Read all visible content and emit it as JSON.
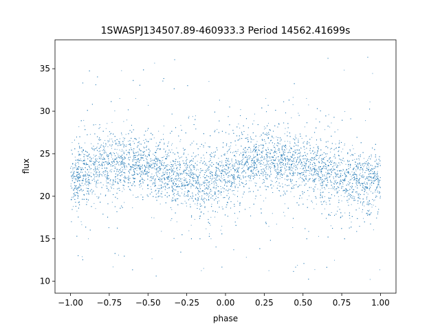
{
  "chart_data": {
    "type": "scatter",
    "title": "1SWASPJ134507.89-460933.3 Period 14562.41699s",
    "xlabel": "phase",
    "ylabel": "flux",
    "xlim": [
      -1.1,
      1.1
    ],
    "ylim": [
      8.6,
      38.4
    ],
    "xticks": [
      -1.0,
      -0.75,
      -0.5,
      -0.25,
      0.0,
      0.25,
      0.5,
      0.75,
      1.0
    ],
    "xtick_labels": [
      "−1.00",
      "−0.75",
      "−0.50",
      "−0.25",
      "0.00",
      "0.25",
      "0.50",
      "0.75",
      "1.00"
    ],
    "yticks": [
      10,
      15,
      20,
      25,
      30,
      35
    ],
    "ytick_labels": [
      "10",
      "15",
      "20",
      "25",
      "30",
      "35"
    ],
    "grid": false,
    "legend": "none",
    "marker_color": "#1f77b4",
    "series": [
      {
        "description_of_trend": "dense band of points, flux mean varying with phase",
        "profile_phase": [
          -1.0,
          -0.875,
          -0.75,
          -0.625,
          -0.5,
          -0.375,
          -0.25,
          -0.125,
          0.0,
          0.125,
          0.25,
          0.375,
          0.5,
          0.625,
          0.75,
          0.875,
          1.0
        ],
        "profile_mean_flux": [
          22.0,
          23.0,
          24.0,
          24.0,
          23.5,
          22.8,
          22.0,
          21.6,
          22.3,
          23.5,
          24.5,
          24.3,
          23.5,
          22.8,
          22.2,
          21.8,
          22.0
        ],
        "typical_band": [
          15,
          30
        ],
        "outlier_range": [
          10,
          36.5
        ]
      }
    ]
  }
}
